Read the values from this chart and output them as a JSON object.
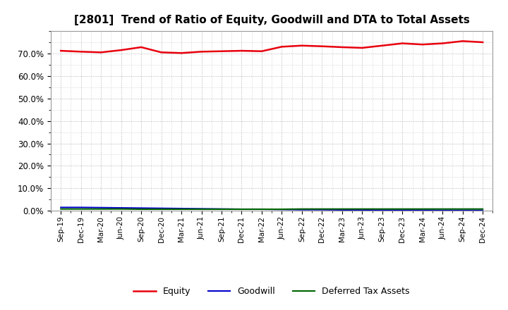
{
  "title": "[2801]  Trend of Ratio of Equity, Goodwill and DTA to Total Assets",
  "x_labels": [
    "Sep-19",
    "Dec-19",
    "Mar-20",
    "Jun-20",
    "Sep-20",
    "Dec-20",
    "Mar-21",
    "Jun-21",
    "Sep-21",
    "Dec-21",
    "Mar-22",
    "Jun-22",
    "Sep-22",
    "Dec-22",
    "Mar-23",
    "Jun-23",
    "Sep-23",
    "Dec-23",
    "Mar-24",
    "Jun-24",
    "Sep-24",
    "Dec-24"
  ],
  "equity": [
    71.2,
    70.8,
    70.5,
    71.5,
    72.8,
    70.5,
    70.2,
    70.8,
    71.0,
    71.2,
    71.0,
    73.0,
    73.5,
    73.2,
    72.8,
    72.5,
    73.5,
    74.5,
    74.0,
    74.5,
    75.5,
    75.0
  ],
  "goodwill": [
    1.5,
    1.5,
    1.4,
    1.3,
    1.2,
    1.1,
    1.0,
    0.9,
    0.8,
    0.7,
    0.7,
    0.6,
    0.5,
    0.5,
    0.4,
    0.4,
    0.3,
    0.3,
    0.3,
    0.2,
    0.2,
    0.2
  ],
  "dta": [
    0.8,
    0.8,
    0.8,
    0.8,
    0.7,
    0.7,
    0.7,
    0.7,
    0.7,
    0.7,
    0.7,
    0.7,
    0.8,
    0.8,
    0.8,
    0.8,
    0.8,
    0.8,
    0.8,
    0.8,
    0.8,
    0.8
  ],
  "equity_color": "#e8000d",
  "goodwill_color": "#0000cc",
  "dta_color": "#006400",
  "background_color": "#ffffff",
  "plot_bg_color": "#ffffff",
  "grid_color": "#aaaaaa",
  "ylim": [
    0,
    80
  ],
  "yticks": [
    0,
    10,
    20,
    30,
    40,
    50,
    60,
    70
  ],
  "legend_labels": [
    "Equity",
    "Goodwill",
    "Deferred Tax Assets"
  ]
}
